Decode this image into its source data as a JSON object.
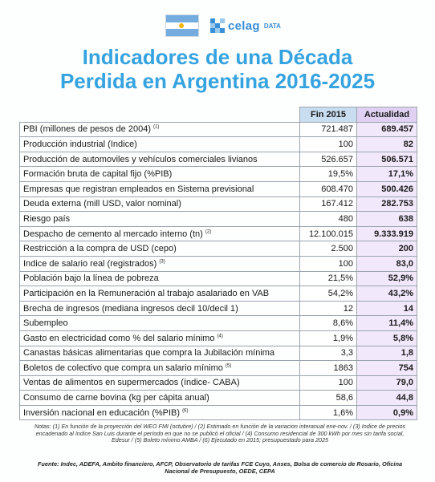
{
  "flag": {
    "icon": "argentina-flag-icon",
    "colors": {
      "blue": "#74acdf",
      "white": "#ffffff",
      "sun": "#f6b40e"
    }
  },
  "brand": {
    "icon": "celag-grid-icon",
    "name": "celag",
    "suffix": "DATA",
    "color": "#3a8fd6"
  },
  "title": {
    "line1": "Indicadores de una Década",
    "line2": "Perdida en Argentina 2016-2025",
    "color": "#35a3df"
  },
  "table": {
    "headers": {
      "fin": "Fin 2015",
      "actual": "Actualidad"
    },
    "rows": [
      {
        "label": "PBI (millones de pesos de 2004)",
        "note": "(1)",
        "fin": "721.487",
        "actual": "689.457"
      },
      {
        "label": "Producción industrial (Indice)",
        "note": "",
        "fin": "100",
        "actual": "82"
      },
      {
        "label": "Producción de automoviles y vehículos comerciales livianos",
        "note": "",
        "fin": "526.657",
        "actual": "506.571"
      },
      {
        "label": "Formación bruta de capital fijo (%PIB)",
        "note": "",
        "fin": "19,5%",
        "actual": "17,1%"
      },
      {
        "label": "Empresas que registran empleados en Sistema previsional",
        "note": "",
        "fin": "608.470",
        "actual": "500.426"
      },
      {
        "label": "Deuda externa (mill USD, valor nominal)",
        "note": "",
        "fin": "167.412",
        "actual": "282.753"
      },
      {
        "label": "Riesgo país",
        "note": "",
        "fin": "480",
        "actual": "638"
      },
      {
        "label": "Despacho de cemento al mercado interno (tn)",
        "note": "(2)",
        "fin": "12.100.015",
        "actual": "9.333.919"
      },
      {
        "label": "Restricción a la compra de USD (cepo)",
        "note": "",
        "fin": "2.500",
        "actual": "200"
      },
      {
        "label": "Indice de salario real (registrados)",
        "note": "(3)",
        "fin": "100",
        "actual": "83,0"
      },
      {
        "label": "Población bajo la línea de pobreza",
        "note": "",
        "fin": "21,5%",
        "actual": "52,9%"
      },
      {
        "label": "Participación en la Remuneración al trabajo asalariado en VAB",
        "note": "",
        "fin": "54,2%",
        "actual": "43,2%"
      },
      {
        "label": "Brecha de ingresos (mediana ingresos decil 10/decil 1)",
        "note": "",
        "fin": "12",
        "actual": "14"
      },
      {
        "label": "Subempleo",
        "note": "",
        "fin": "8,6%",
        "actual": "11,4%"
      },
      {
        "label": "Gasto en electricidad como % del salario mínimo",
        "note": "(4)",
        "fin": "1,9%",
        "actual": "5,8%"
      },
      {
        "label": "Canastas básicas alimentarias que compra la Jubilación mínima",
        "note": "",
        "fin": "3,3",
        "actual": "1,8"
      },
      {
        "label": "Boletos de colectivo que compra un salario mínimo",
        "note": "(5)",
        "fin": "1863",
        "actual": "754"
      },
      {
        "label": "Ventas de alimentos  en supermercados (índice- CABA)",
        "note": "",
        "fin": "100",
        "actual": "79,0"
      },
      {
        "label": "Consumo de carne bovina (kg per cápita anual)",
        "note": "",
        "fin": "58,6",
        "actual": "44,8"
      },
      {
        "label": "Inversión nacional en educación (%PIB)",
        "note": "(6)",
        "fin": "1,6%",
        "actual": "0,9%"
      }
    ]
  },
  "notes": "Notas: (1) En función de la proyección del WEO FMI (octubre) / (2) Estimado en función de la variacion interanual ene-nov. / (3) Indice de precios encadenado al índice San Luis durante el período en que no se publicó el oficial / (4) Consumo residencial de 300 kWh por mes sin tarifa social, Edesur / (5) Boleto mínimo AMBA / (6) Ejecutado en 2015; presupuestado para 2025",
  "source": "Fuente: Indec, ADEFA, Ambito financiero, AFCP, Observatorio de tarifas FCE Cuyo, Anses, Bolsa de comercio de Rosario, Oficina Nacional de Presupuesto, OEDE, CEPA"
}
